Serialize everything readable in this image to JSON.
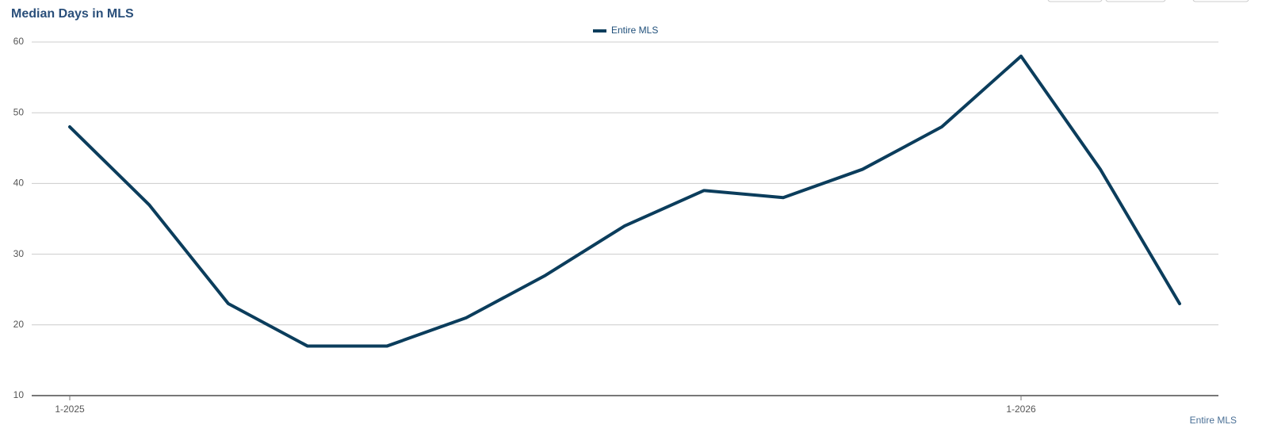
{
  "chart_data": {
    "type": "line",
    "title": "Median Days in MLS",
    "xlabel": "Entire MLS",
    "categories": [
      "1-2025",
      null,
      null,
      null,
      null,
      null,
      null,
      null,
      null,
      null,
      null,
      null,
      "1-2026",
      null,
      null
    ],
    "series": [
      {
        "name": "Entire MLS",
        "color": "#0b3d5c",
        "values": [
          48,
          37,
          23,
          17,
          17,
          21,
          27,
          34,
          39,
          38,
          42,
          48,
          58,
          42,
          23
        ]
      }
    ],
    "ylim": [
      10,
      60
    ],
    "yticks": [
      10,
      20,
      30,
      40,
      50,
      60
    ],
    "grid": true,
    "legend": "top"
  }
}
